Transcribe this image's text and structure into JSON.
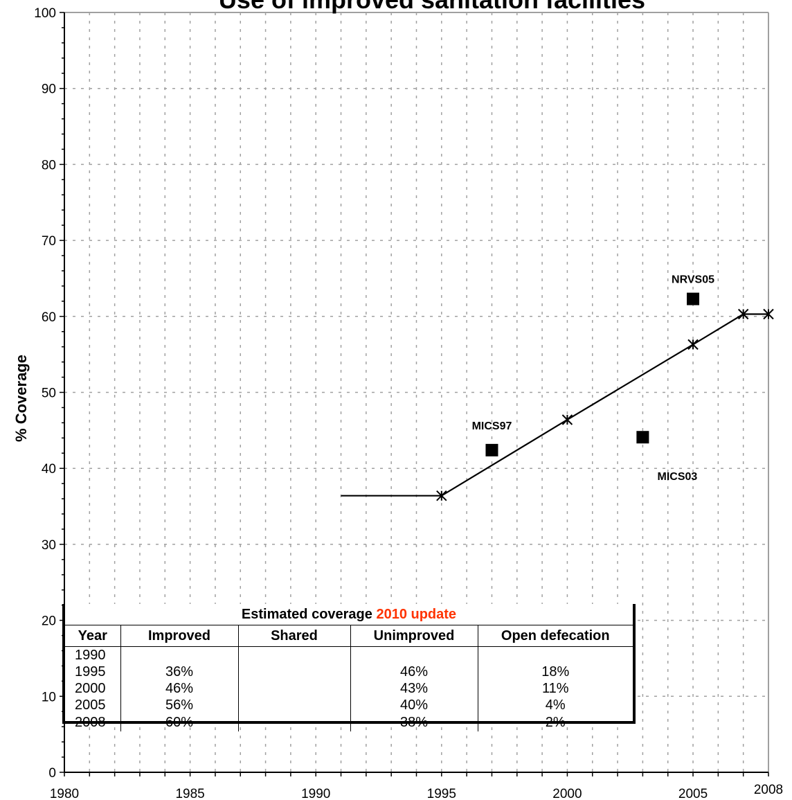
{
  "chart_data": {
    "type": "line",
    "title": "Use of improved sanitation facilities",
    "ylabel": "% Coverage",
    "xlim": [
      1980,
      2008
    ],
    "ylim": [
      0,
      100
    ],
    "x_ticks": [
      1980,
      1985,
      1990,
      1995,
      2000,
      2005,
      2008
    ],
    "y_ticks": [
      0,
      10,
      20,
      30,
      40,
      50,
      60,
      70,
      80,
      90,
      100
    ],
    "grid": true,
    "series": [
      {
        "style": "line-with-x-markers",
        "points": [
          [
            1991,
            36.4
          ],
          [
            1995,
            36.4
          ],
          [
            2000,
            46.4
          ],
          [
            2005,
            56.3
          ],
          [
            2007,
            60.3
          ],
          [
            2008,
            60.3
          ]
        ],
        "markers_at": [
          1995,
          2000,
          2005,
          2007,
          2008
        ]
      },
      {
        "style": "square-markers",
        "points": [
          {
            "x": 1997,
            "y": 42.4,
            "label": "MICS97"
          },
          {
            "x": 2003,
            "y": 44.1,
            "label": "MICS03"
          },
          {
            "x": 2005,
            "y": 62.3,
            "label": "NRVS05"
          }
        ]
      }
    ]
  },
  "table": {
    "title_prefix": "Estimated coverage ",
    "title_highlight": "2010 update",
    "highlight_color": "#ff3300",
    "headers": [
      "Year",
      "Improved",
      "Shared",
      "Unimproved",
      "Open defecation"
    ],
    "rows": [
      [
        "1990",
        "",
        "",
        "",
        ""
      ],
      [
        "1995",
        "36%",
        "",
        "46%",
        "18%"
      ],
      [
        "2000",
        "46%",
        "",
        "43%",
        "11%"
      ],
      [
        "2005",
        "56%",
        "",
        "40%",
        "4%"
      ],
      [
        "2008",
        "60%",
        "",
        "38%",
        "2%"
      ]
    ]
  }
}
